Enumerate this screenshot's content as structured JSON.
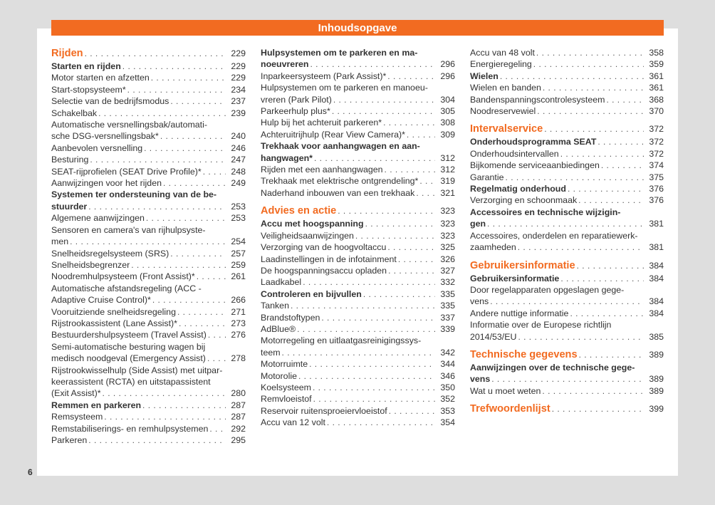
{
  "header": {
    "title": "Inhoudsopgave"
  },
  "page_number": "6",
  "colors": {
    "accent": "#f26b21",
    "background": "#dedede"
  },
  "columns": [
    [
      {
        "type": "chapter",
        "lines": [
          "Rijden"
        ],
        "page": "229"
      },
      {
        "type": "section",
        "lines": [
          "Starten en rijden"
        ],
        "page": "229"
      },
      {
        "type": "item",
        "lines": [
          "Motor starten en afzetten"
        ],
        "page": "229"
      },
      {
        "type": "item",
        "lines": [
          "Start-stopsysteem*"
        ],
        "page": "234"
      },
      {
        "type": "item",
        "lines": [
          "Selectie van de bedrijfsmodus"
        ],
        "page": "237"
      },
      {
        "type": "item",
        "lines": [
          "Schakelbak"
        ],
        "page": "239"
      },
      {
        "type": "item",
        "lines": [
          "Automatische versnellingsbak/automati-",
          "sche DSG-versnellingsbak*"
        ],
        "page": "240"
      },
      {
        "type": "item",
        "lines": [
          "Aanbevolen versnelling"
        ],
        "page": "246"
      },
      {
        "type": "item",
        "lines": [
          "Besturing"
        ],
        "page": "247"
      },
      {
        "type": "item",
        "lines": [
          "SEAT-rijprofielen (SEAT Drive Profile)*"
        ],
        "page": "248"
      },
      {
        "type": "item",
        "lines": [
          "Aanwijzingen voor het rijden"
        ],
        "page": "249"
      },
      {
        "type": "section",
        "lines": [
          "Systemen ter ondersteuning van de be-",
          "stuurder"
        ],
        "page": "253"
      },
      {
        "type": "item",
        "lines": [
          "Algemene aanwijzingen"
        ],
        "page": "253"
      },
      {
        "type": "item",
        "lines": [
          "Sensoren en camera's van rijhulpsyste-",
          "men"
        ],
        "page": "254"
      },
      {
        "type": "item",
        "lines": [
          "Snelheidsregelsysteem (SRS)"
        ],
        "page": "257"
      },
      {
        "type": "item",
        "lines": [
          "Snelheidsbegrenzer"
        ],
        "page": "259"
      },
      {
        "type": "item",
        "lines": [
          "Noodremhulpsysteem (Front Assist)*"
        ],
        "page": "261"
      },
      {
        "type": "item",
        "lines": [
          "Automatische afstandsregeling (ACC -",
          "Adaptive Cruise Control)*"
        ],
        "page": "266"
      },
      {
        "type": "item",
        "lines": [
          "Vooruitziende snelheidsregeling"
        ],
        "page": "271"
      },
      {
        "type": "item",
        "lines": [
          "Rijstrookassistent (Lane Assist)*"
        ],
        "page": "273"
      },
      {
        "type": "item",
        "lines": [
          "Bestuurdershulpsysteem (Travel Assist)"
        ],
        "page": "276"
      },
      {
        "type": "item",
        "lines": [
          "Semi-automatische besturing wagen bij",
          "medisch noodgeval (Emergency Assist)"
        ],
        "page": "278"
      },
      {
        "type": "item",
        "lines": [
          "Rijstrookwisselhulp (Side Assist) met uitpar-",
          "keerassistent (RCTA) en uitstapassistent",
          "(Exit Assist)*"
        ],
        "page": "280"
      },
      {
        "type": "section",
        "lines": [
          "Remmen en parkeren"
        ],
        "page": "287"
      },
      {
        "type": "item",
        "lines": [
          "Remsysteem"
        ],
        "page": "287"
      },
      {
        "type": "item",
        "lines": [
          "Remstabiliserings- en remhulpsystemen"
        ],
        "page": "292"
      },
      {
        "type": "item",
        "lines": [
          "Parkeren"
        ],
        "page": "295"
      }
    ],
    [
      {
        "type": "section",
        "lines": [
          "Hulpsystemen om te parkeren en ma-",
          "noeuvreren"
        ],
        "page": "296"
      },
      {
        "type": "item",
        "lines": [
          "Inparkeersysteem (Park Assist)*"
        ],
        "page": "296"
      },
      {
        "type": "item",
        "lines": [
          "Hulpsystemen om te parkeren en manoeu-",
          "vreren (Park Pilot)"
        ],
        "page": "304"
      },
      {
        "type": "item",
        "lines": [
          "Parkeerhulp plus*"
        ],
        "page": "305"
      },
      {
        "type": "item",
        "lines": [
          "Hulp bij het achteruit parkeren*"
        ],
        "page": "308"
      },
      {
        "type": "item",
        "lines": [
          "Achteruitrijhulp (Rear View Camera)*"
        ],
        "page": "309"
      },
      {
        "type": "section",
        "lines": [
          "Trekhaak voor aanhangwagen en aan-",
          "hangwagen*"
        ],
        "page": "312"
      },
      {
        "type": "item",
        "lines": [
          "Rijden met een aanhangwagen"
        ],
        "page": "312"
      },
      {
        "type": "item",
        "lines": [
          "Trekhaak met elektrische ontgrendeling*"
        ],
        "page": "319"
      },
      {
        "type": "item",
        "lines": [
          "Naderhand inbouwen van een trekhaak"
        ],
        "page": "321"
      },
      {
        "type": "chapter",
        "lines": [
          "Advies en actie"
        ],
        "page": "323"
      },
      {
        "type": "section",
        "lines": [
          "Accu met hoogspanning"
        ],
        "page": "323"
      },
      {
        "type": "item",
        "lines": [
          "Veiligheidsaanwijzingen"
        ],
        "page": "323"
      },
      {
        "type": "item",
        "lines": [
          "Verzorging van de hoogvoltaccu"
        ],
        "page": "325"
      },
      {
        "type": "item",
        "lines": [
          "Laadinstellingen in de infotainment"
        ],
        "page": "326"
      },
      {
        "type": "item",
        "lines": [
          "De hoogspanningsaccu opladen"
        ],
        "page": "327"
      },
      {
        "type": "item",
        "lines": [
          "Laadkabel"
        ],
        "page": "332"
      },
      {
        "type": "section",
        "lines": [
          "Controleren en bijvullen"
        ],
        "page": "335"
      },
      {
        "type": "item",
        "lines": [
          "Tanken"
        ],
        "page": "335"
      },
      {
        "type": "item",
        "lines": [
          "Brandstoftypen"
        ],
        "page": "337"
      },
      {
        "type": "item",
        "lines": [
          "AdBlue®"
        ],
        "page": "339"
      },
      {
        "type": "item",
        "lines": [
          "Motorregeling en uitlaatgasreinigingssys-",
          "teem"
        ],
        "page": "342"
      },
      {
        "type": "item",
        "lines": [
          "Motorruimte"
        ],
        "page": "344"
      },
      {
        "type": "item",
        "lines": [
          "Motorolie"
        ],
        "page": "346"
      },
      {
        "type": "item",
        "lines": [
          "Koelsysteem"
        ],
        "page": "350"
      },
      {
        "type": "item",
        "lines": [
          "Remvloeistof"
        ],
        "page": "352"
      },
      {
        "type": "item",
        "lines": [
          "Reservoir ruitensproeiervloeistof"
        ],
        "page": "353"
      },
      {
        "type": "item",
        "lines": [
          "Accu van 12 volt"
        ],
        "page": "354"
      }
    ],
    [
      {
        "type": "item",
        "lines": [
          "Accu van 48 volt"
        ],
        "page": "358"
      },
      {
        "type": "item",
        "lines": [
          "Energieregeling"
        ],
        "page": "359"
      },
      {
        "type": "section",
        "lines": [
          "Wielen"
        ],
        "page": "361"
      },
      {
        "type": "item",
        "lines": [
          "Wielen en banden"
        ],
        "page": "361"
      },
      {
        "type": "item",
        "lines": [
          "Bandenspanningscontrolesysteem"
        ],
        "page": "368"
      },
      {
        "type": "item",
        "lines": [
          "Noodreservewiel"
        ],
        "page": "370"
      },
      {
        "type": "chapter",
        "lines": [
          "Intervalservice"
        ],
        "page": "372"
      },
      {
        "type": "section",
        "lines": [
          "Onderhoudsprogramma SEAT"
        ],
        "page": "372"
      },
      {
        "type": "item",
        "lines": [
          "Onderhoudsintervallen"
        ],
        "page": "372"
      },
      {
        "type": "item",
        "lines": [
          "Bijkomende serviceaanbiedingen"
        ],
        "page": "374"
      },
      {
        "type": "item",
        "lines": [
          "Garantie"
        ],
        "page": "375"
      },
      {
        "type": "section",
        "lines": [
          "Regelmatig onderhoud"
        ],
        "page": "376"
      },
      {
        "type": "item",
        "lines": [
          "Verzorging en schoonmaak"
        ],
        "page": "376"
      },
      {
        "type": "section",
        "lines": [
          "Accessoires en technische wijzigin-",
          "gen"
        ],
        "page": "381"
      },
      {
        "type": "item",
        "lines": [
          "Accessoires, onderdelen en reparatiewerk-",
          "zaamheden"
        ],
        "page": "381"
      },
      {
        "type": "chapter",
        "lines": [
          "Gebruikersinformatie"
        ],
        "page": "384"
      },
      {
        "type": "section",
        "lines": [
          "Gebruikersinformatie"
        ],
        "page": "384"
      },
      {
        "type": "item",
        "lines": [
          "Door regelapparaten opgeslagen gege-",
          "vens"
        ],
        "page": "384"
      },
      {
        "type": "item",
        "lines": [
          "Andere nuttige informatie"
        ],
        "page": "384"
      },
      {
        "type": "item",
        "lines": [
          "Informatie over de Europese richtlijn",
          "2014/53/EU"
        ],
        "page": "385"
      },
      {
        "type": "chapter",
        "lines": [
          "Technische gegevens"
        ],
        "page": "389"
      },
      {
        "type": "section",
        "lines": [
          "Aanwijzingen over de technische gege-",
          "vens"
        ],
        "page": "389"
      },
      {
        "type": "item",
        "lines": [
          "Wat u moet weten"
        ],
        "page": "389"
      },
      {
        "type": "chapter",
        "lines": [
          "Trefwoordenlijst"
        ],
        "page": "399"
      }
    ]
  ]
}
